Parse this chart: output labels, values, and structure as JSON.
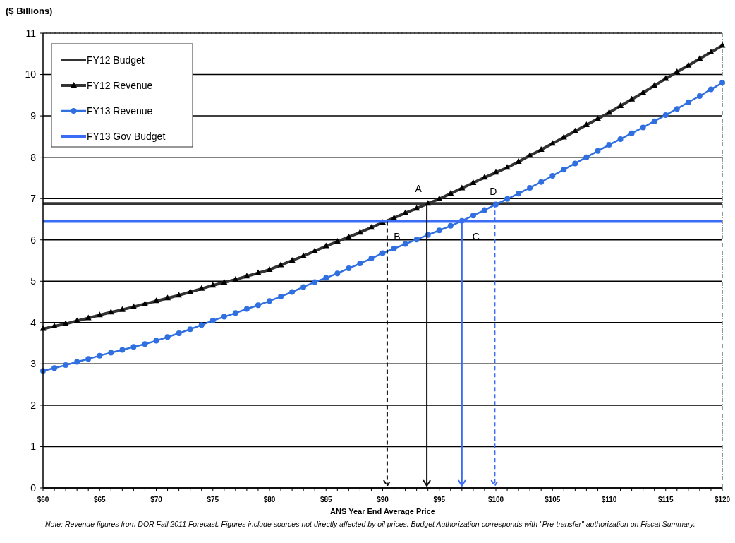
{
  "chart_data": {
    "type": "line",
    "ylabel": "($ Billions)",
    "xlabel": "ANS Year End Average Price",
    "x": [
      60,
      61,
      62,
      63,
      64,
      65,
      66,
      67,
      68,
      69,
      70,
      71,
      72,
      73,
      74,
      75,
      76,
      77,
      78,
      79,
      80,
      81,
      82,
      83,
      84,
      85,
      86,
      87,
      88,
      89,
      90,
      91,
      92,
      93,
      94,
      95,
      96,
      97,
      98,
      99,
      100,
      101,
      102,
      103,
      104,
      105,
      106,
      107,
      108,
      109,
      110,
      111,
      112,
      113,
      114,
      115,
      116,
      117,
      118,
      119,
      120
    ],
    "series": [
      {
        "name": "FY12 Budget",
        "color": "#333333",
        "marker": "none",
        "line_style": "solid",
        "values": [
          6.88,
          6.88,
          6.88,
          6.88,
          6.88,
          6.88,
          6.88,
          6.88,
          6.88,
          6.88,
          6.88,
          6.88,
          6.88,
          6.88,
          6.88,
          6.88,
          6.88,
          6.88,
          6.88,
          6.88,
          6.88,
          6.88,
          6.88,
          6.88,
          6.88,
          6.88,
          6.88,
          6.88,
          6.88,
          6.88,
          6.88,
          6.88,
          6.88,
          6.88,
          6.88,
          6.88,
          6.88,
          6.88,
          6.88,
          6.88,
          6.88,
          6.88,
          6.88,
          6.88,
          6.88,
          6.88,
          6.88,
          6.88,
          6.88,
          6.88,
          6.88,
          6.88,
          6.88,
          6.88,
          6.88,
          6.88,
          6.88,
          6.88,
          6.88,
          6.88,
          6.88
        ]
      },
      {
        "name": "FY12 Revenue",
        "color": "#333333",
        "marker": "triangle",
        "line_style": "solid",
        "values": [
          3.85,
          3.91,
          3.97,
          4.04,
          4.11,
          4.18,
          4.25,
          4.31,
          4.38,
          4.45,
          4.52,
          4.59,
          4.66,
          4.74,
          4.82,
          4.9,
          4.97,
          5.04,
          5.12,
          5.2,
          5.28,
          5.39,
          5.5,
          5.61,
          5.73,
          5.85,
          5.96,
          6.07,
          6.18,
          6.3,
          6.42,
          6.53,
          6.65,
          6.76,
          6.88,
          6.99,
          7.12,
          7.25,
          7.38,
          7.51,
          7.63,
          7.75,
          7.89,
          8.04,
          8.18,
          8.33,
          8.48,
          8.63,
          8.78,
          8.93,
          9.08,
          9.24,
          9.4,
          9.56,
          9.73,
          9.9,
          10.06,
          10.22,
          10.38,
          10.54,
          10.7
        ]
      },
      {
        "name": "FY13 Revenue",
        "color": "#2f6fe0",
        "marker": "circle",
        "line_style": "solid",
        "values": [
          2.83,
          2.9,
          2.97,
          3.05,
          3.12,
          3.2,
          3.27,
          3.34,
          3.41,
          3.48,
          3.56,
          3.65,
          3.74,
          3.84,
          3.94,
          4.05,
          4.14,
          4.23,
          4.33,
          4.42,
          4.52,
          4.63,
          4.74,
          4.86,
          4.98,
          5.08,
          5.19,
          5.31,
          5.43,
          5.55,
          5.68,
          5.79,
          5.9,
          6.01,
          6.12,
          6.23,
          6.34,
          6.46,
          6.59,
          6.72,
          6.86,
          6.99,
          7.12,
          7.26,
          7.4,
          7.55,
          7.7,
          7.85,
          8.0,
          8.15,
          8.3,
          8.44,
          8.58,
          8.72,
          8.87,
          9.02,
          9.17,
          9.33,
          9.48,
          9.64,
          9.8
        ]
      },
      {
        "name": "FY13 Gov Budget",
        "color": "#3b6cf5",
        "marker": "none",
        "line_style": "solid",
        "values": [
          6.45,
          6.45,
          6.45,
          6.45,
          6.45,
          6.45,
          6.45,
          6.45,
          6.45,
          6.45,
          6.45,
          6.45,
          6.45,
          6.45,
          6.45,
          6.45,
          6.45,
          6.45,
          6.45,
          6.45,
          6.45,
          6.45,
          6.45,
          6.45,
          6.45,
          6.45,
          6.45,
          6.45,
          6.45,
          6.45,
          6.45,
          6.45,
          6.45,
          6.45,
          6.45,
          6.45,
          6.45,
          6.45,
          6.45,
          6.45,
          6.45,
          6.45,
          6.45,
          6.45,
          6.45,
          6.45,
          6.45,
          6.45,
          6.45,
          6.45,
          6.45,
          6.45,
          6.45,
          6.45,
          6.45,
          6.45,
          6.45,
          6.45,
          6.45,
          6.45,
          6.45
        ]
      }
    ],
    "ref_lines": [
      {
        "axis": "x",
        "value": 93.9,
        "color": "#111111",
        "line_style": "solid"
      },
      {
        "axis": "x",
        "value": 90.4,
        "color": "#111111",
        "line_style": "dashed"
      },
      {
        "axis": "x",
        "value": 97,
        "color": "#3b6cf5",
        "line_style": "solid"
      },
      {
        "axis": "x",
        "value": 99.9,
        "color": "#3b6cf5",
        "line_style": "dashed"
      }
    ],
    "annotations": [
      {
        "text": "A",
        "x": 93.9,
        "y": 6.88
      },
      {
        "text": "B",
        "x": 90.4,
        "y": 6.45
      },
      {
        "text": "C",
        "x": 97,
        "y": 6.45
      },
      {
        "text": "D",
        "x": 99.9,
        "y": 6.88
      },
      "Note:  Revenue figures from DOR Fall 2011 Forecast.  Figures include sources not directly affected by oil prices.  Budget Authorization corresponds with \"Pre-transfer\" authorization on Fiscal Summary."
    ],
    "xlim": [
      60,
      120
    ],
    "ylim": [
      0,
      11
    ],
    "xticks": [
      {
        "value": 60,
        "label": "$60"
      },
      {
        "value": 61,
        "label": null
      },
      {
        "value": 62,
        "label": null
      },
      {
        "value": 63,
        "label": null
      },
      {
        "value": 64,
        "label": null
      },
      {
        "value": 65,
        "label": "$65"
      },
      {
        "value": 66,
        "label": null
      },
      {
        "value": 67,
        "label": null
      },
      {
        "value": 68,
        "label": null
      },
      {
        "value": 69,
        "label": null
      },
      {
        "value": 70,
        "label": "$70"
      },
      {
        "value": 71,
        "label": null
      },
      {
        "value": 72,
        "label": null
      },
      {
        "value": 73,
        "label": null
      },
      {
        "value": 74,
        "label": null
      },
      {
        "value": 75,
        "label": "$75"
      },
      {
        "value": 76,
        "label": null
      },
      {
        "value": 77,
        "label": null
      },
      {
        "value": 78,
        "label": null
      },
      {
        "value": 79,
        "label": null
      },
      {
        "value": 80,
        "label": "$80"
      },
      {
        "value": 81,
        "label": null
      },
      {
        "value": 82,
        "label": null
      },
      {
        "value": 83,
        "label": null
      },
      {
        "value": 84,
        "label": null
      },
      {
        "value": 85,
        "label": "$85"
      },
      {
        "value": 86,
        "label": null
      },
      {
        "value": 87,
        "label": null
      },
      {
        "value": 88,
        "label": null
      },
      {
        "value": 89,
        "label": null
      },
      {
        "value": 90,
        "label": "$90"
      },
      {
        "value": 91,
        "label": null
      },
      {
        "value": 92,
        "label": null
      },
      {
        "value": 93,
        "label": null
      },
      {
        "value": 94,
        "label": null
      },
      {
        "value": 95,
        "label": "$95"
      },
      {
        "value": 96,
        "label": null
      },
      {
        "value": 97,
        "label": null
      },
      {
        "value": 98,
        "label": null
      },
      {
        "value": 99,
        "label": null
      },
      {
        "value": 100,
        "label": "$100"
      },
      {
        "value": 101,
        "label": null
      },
      {
        "value": 102,
        "label": null
      },
      {
        "value": 103,
        "label": null
      },
      {
        "value": 104,
        "label": null
      },
      {
        "value": 105,
        "label": "$105"
      },
      {
        "value": 106,
        "label": null
      },
      {
        "value": 107,
        "label": null
      },
      {
        "value": 108,
        "label": null
      },
      {
        "value": 109,
        "label": null
      },
      {
        "value": 110,
        "label": "$110"
      },
      {
        "value": 111,
        "label": null
      },
      {
        "value": 112,
        "label": null
      },
      {
        "value": 113,
        "label": null
      },
      {
        "value": 114,
        "label": null
      },
      {
        "value": 115,
        "label": "$115"
      },
      {
        "value": 116,
        "label": null
      },
      {
        "value": 117,
        "label": null
      },
      {
        "value": 118,
        "label": null
      },
      {
        "value": 119,
        "label": null
      },
      {
        "value": 120,
        "label": "$120"
      }
    ],
    "yticks": [
      0,
      1,
      2,
      3,
      4,
      5,
      6,
      7,
      8,
      9,
      10,
      11
    ],
    "grid": "y",
    "legend": "top left"
  }
}
